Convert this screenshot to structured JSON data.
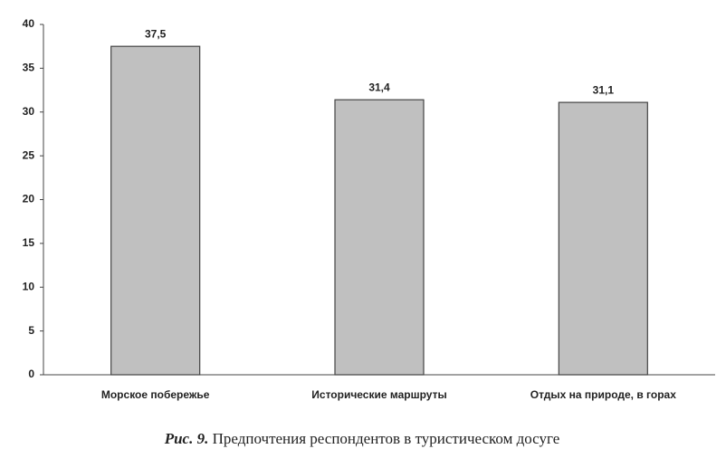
{
  "chart_data": {
    "type": "bar",
    "caption_label": "Рис. 9.",
    "title": "Предпочтения респондентов в туристическом досуге",
    "categories": [
      "Морское побережье",
      "Исторические маршруты",
      "Отдых на природе, в горах"
    ],
    "values": [
      37.5,
      31.4,
      31.1
    ],
    "value_labels": [
      "37,5",
      "31,4",
      "31,1"
    ],
    "color": "#c0c0c0",
    "ylim": [
      0,
      40
    ],
    "yticks": [
      0,
      5,
      10,
      15,
      20,
      25,
      30,
      35,
      40
    ],
    "grid": false
  }
}
